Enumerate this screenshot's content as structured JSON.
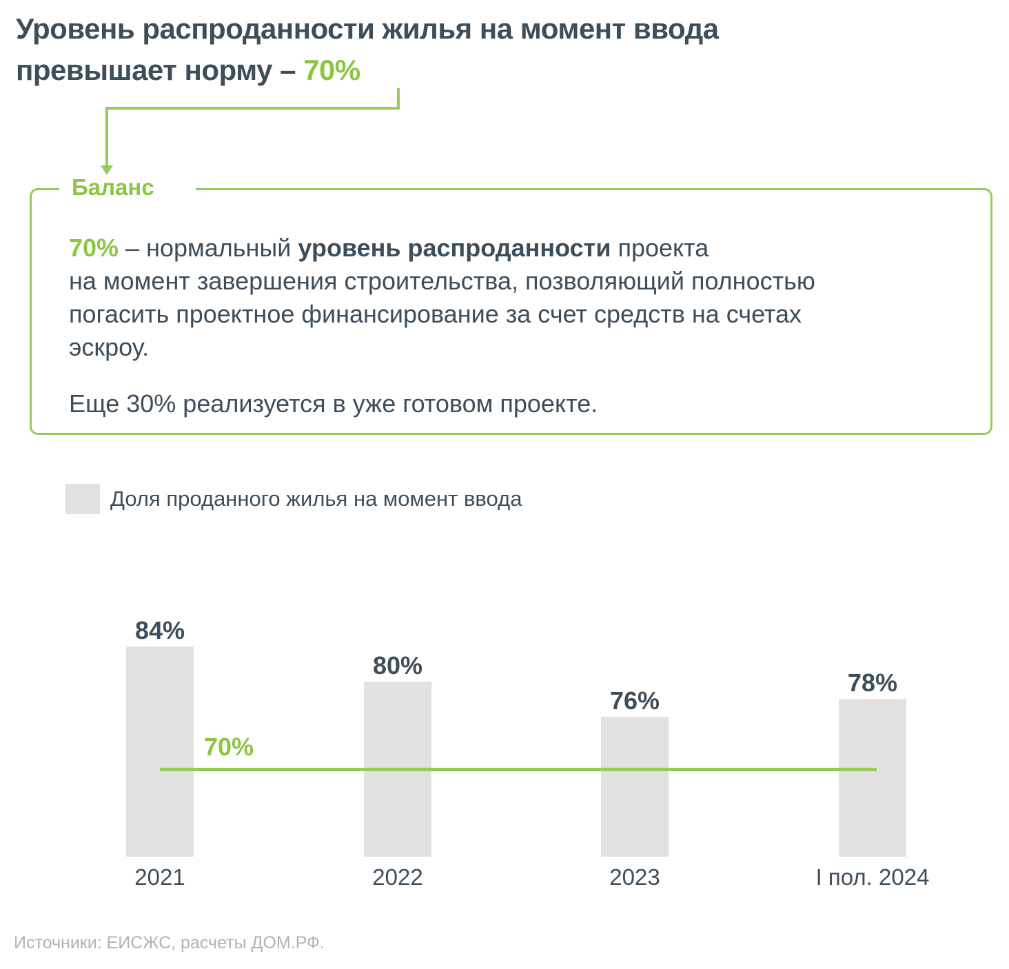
{
  "title": {
    "line1": "Уровень распроданности жилья на момент ввода",
    "line2_prefix": "превышает норму – ",
    "line2_highlight": "70%"
  },
  "callout": {
    "label": "Баланс",
    "paragraph1_segments": [
      {
        "text": "70%",
        "style": "green-bold"
      },
      {
        "text": " – нормальный ",
        "style": "normal"
      },
      {
        "text": "уровень распроданности",
        "style": "bold"
      },
      {
        "text": " проекта\nна момент завершения строительства, позволяющий полностью\nпогасить проектное финансирование за счет средств на счетах\nэскроу.",
        "style": "normal"
      }
    ],
    "paragraph2": "Еще 30% реализуется в уже готовом проекте."
  },
  "chart_data": {
    "type": "bar",
    "title": "Доля проданного жилья на момент ввода",
    "legend_label": "Доля проданного жилья на момент ввода",
    "legend_position": "top-left",
    "categories": [
      "2021",
      "2022",
      "2023",
      "I пол. 2024"
    ],
    "values": [
      84,
      80,
      76,
      78
    ],
    "value_suffix": "%",
    "norm_line": {
      "value": 70,
      "label": "70%"
    },
    "ylim": [
      60,
      88
    ],
    "grid": false,
    "bar_color": "#E1E1E1",
    "norm_line_color": "#97CB57",
    "label_color": "#3E4D5A"
  },
  "source": "Источники: ЕИСЖС, расчеты ДОМ.РФ.",
  "colors": {
    "accent_green": "#8CC540",
    "text_dark": "#3E4D5A",
    "bar_gray": "#E1E1E1",
    "source_gray": "#B2B2B2"
  }
}
